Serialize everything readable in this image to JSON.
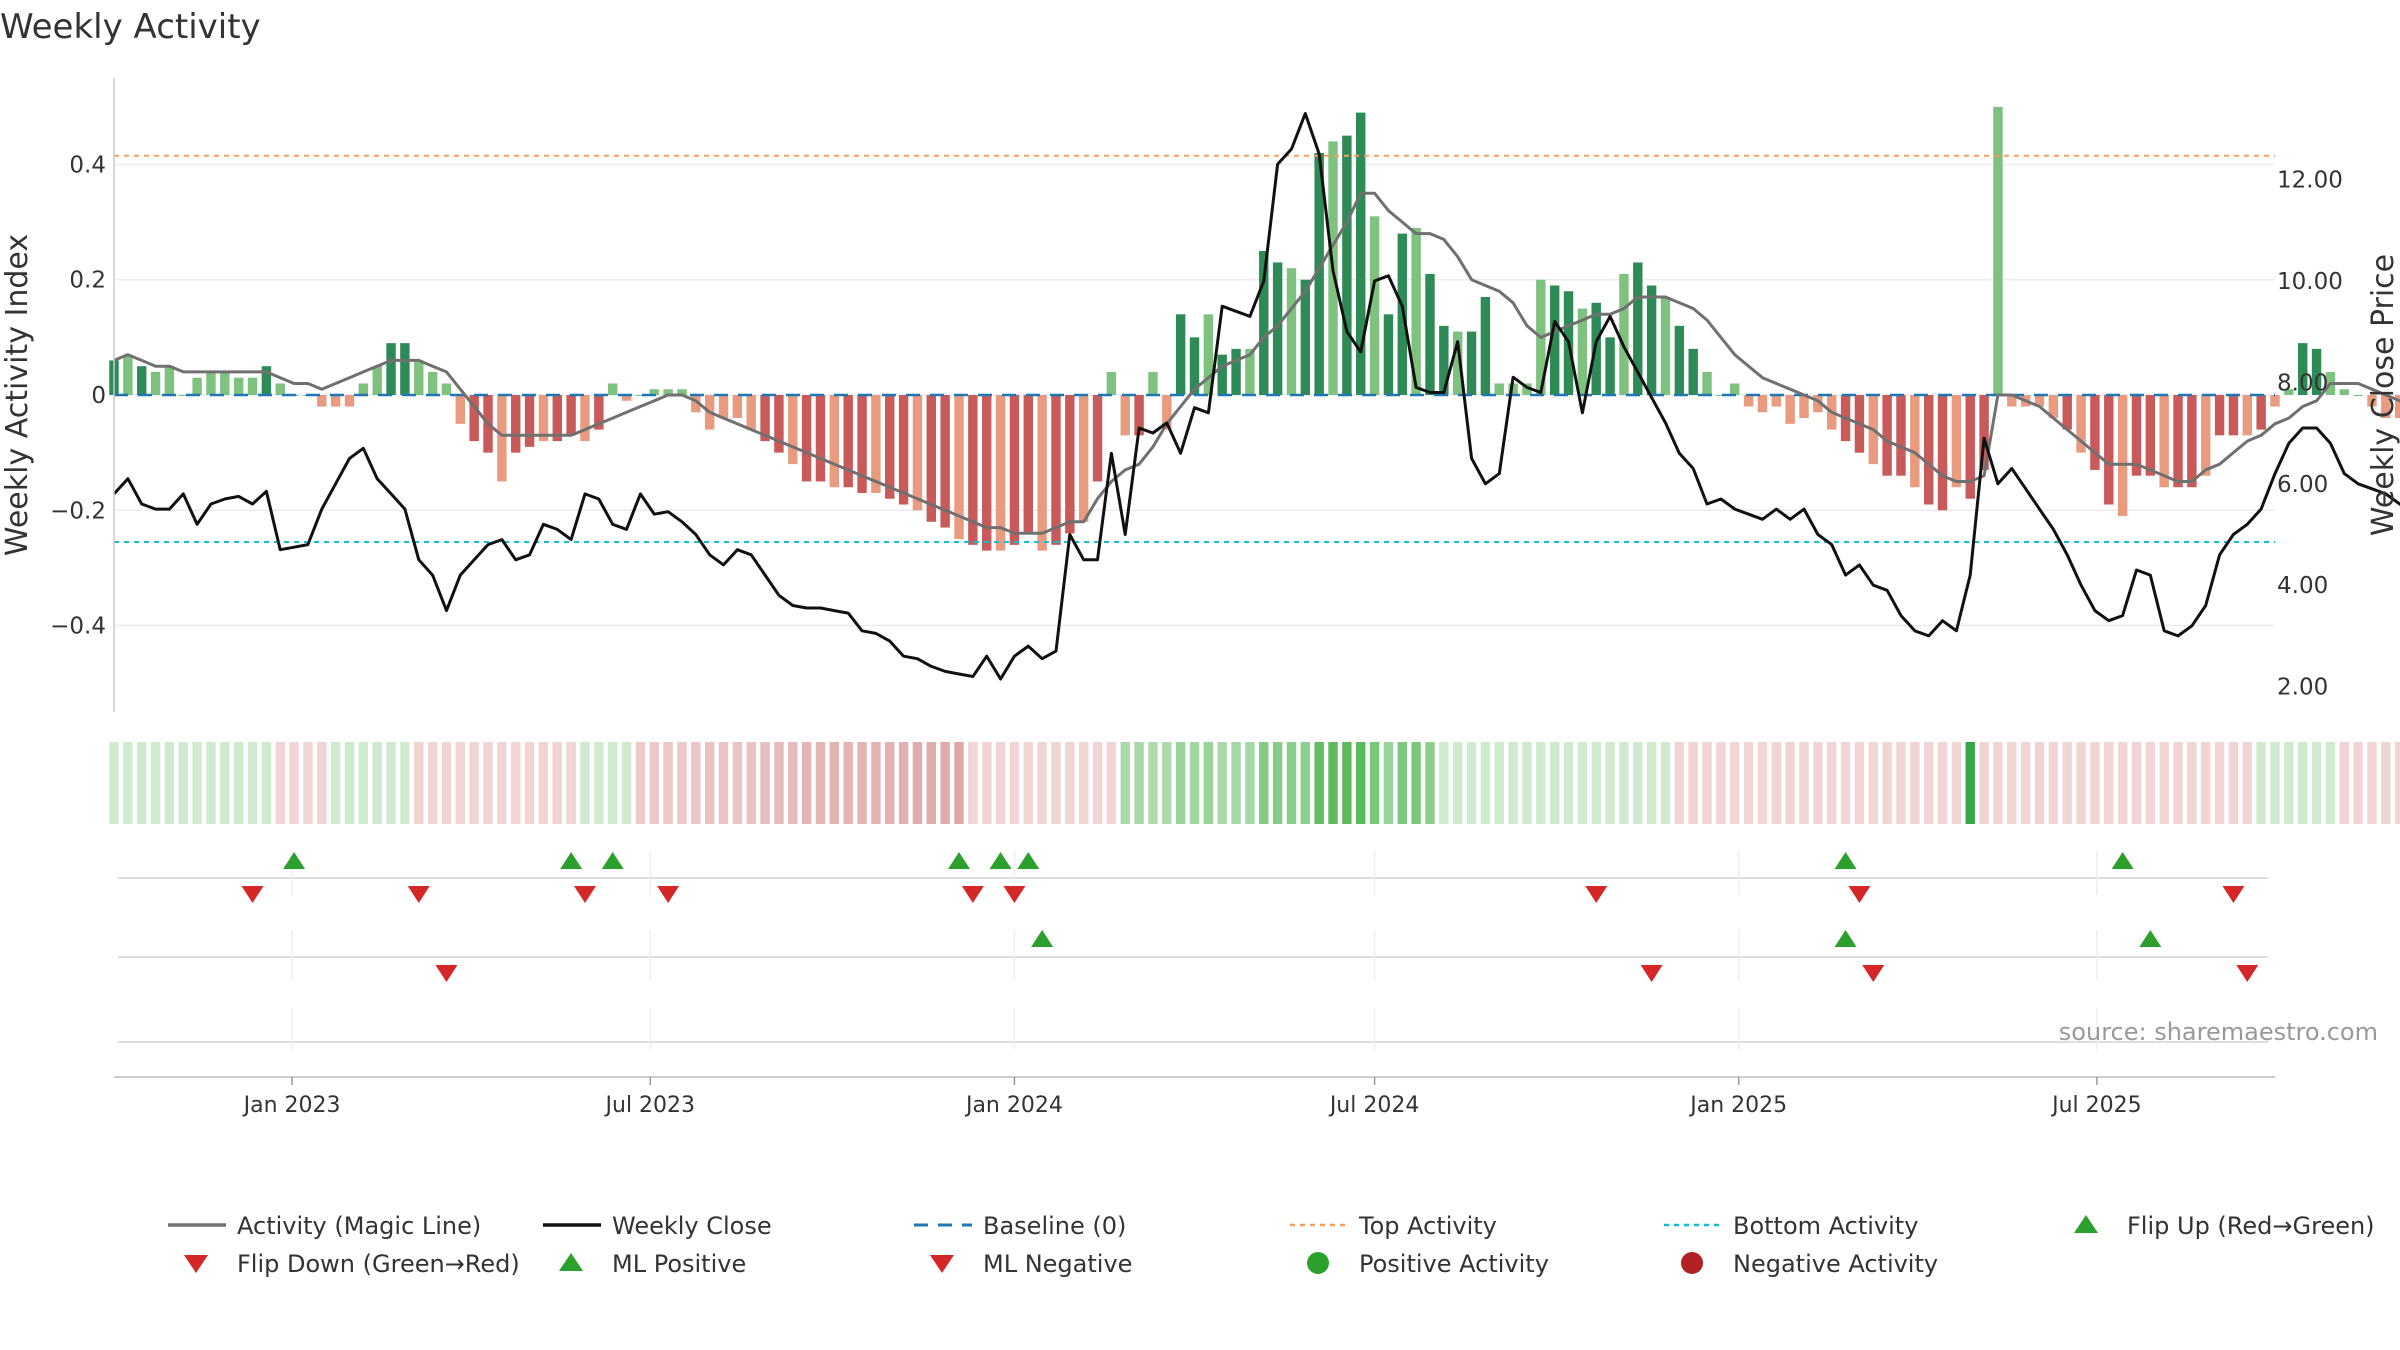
{
  "title": "Weekly Activity",
  "source": "source: sharemaestro.com",
  "colors": {
    "pos_dark": "#2e8b57",
    "pos_light": "#7fc27f",
    "neg_dark": "#c85a5a",
    "neg_light": "#e99b7f",
    "magic_line": "#707070",
    "close_line": "#111111",
    "baseline": "#1f77b4",
    "top": "#f0a060",
    "bottom": "#17becf",
    "up_marker": "#2ca02c",
    "down_marker": "#d62728",
    "pos_dot": "#2ca02c",
    "neg_dot": "#b22222"
  },
  "chart_data": {
    "type": "bar",
    "title": "Weekly Activity",
    "ylabel": "Weekly Activity Index",
    "y2label": "Weekly Close Price",
    "ylim": [
      -0.55,
      0.55
    ],
    "y2lim": [
      1.5,
      14.0
    ],
    "yticks": [
      {
        "v": 0.4,
        "label": "0.4"
      },
      {
        "v": 0.2,
        "label": "0.2"
      },
      {
        "v": 0,
        "label": "0"
      },
      {
        "v": -0.2,
        "label": "−0.2"
      },
      {
        "v": -0.4,
        "label": "−0.4"
      }
    ],
    "y2ticks": [
      "12.00",
      "10.00",
      "8.00",
      "6.00",
      "4.00",
      "2.00"
    ],
    "x_start": "2022-10-03",
    "x_end": "2025-09-29",
    "date_ticks": [
      {
        "date": "2023-01-01",
        "label": "Jan 2023"
      },
      {
        "date": "2023-07-01",
        "label": "Jul 2023"
      },
      {
        "date": "2024-01-01",
        "label": "Jan 2024"
      },
      {
        "date": "2024-07-01",
        "label": "Jul 2024"
      },
      {
        "date": "2025-01-01",
        "label": "Jan 2025"
      },
      {
        "date": "2025-07-01",
        "label": "Jul 2025"
      }
    ],
    "top_activity": 0.415,
    "bottom_activity": -0.255,
    "baseline": 0,
    "activity_weeks": [
      {
        "start": "2022-10-03",
        "values": [
          0.06,
          0.07,
          0.05,
          0.04,
          0.05,
          0.0,
          0.03,
          0.04,
          0.04,
          0.03,
          0.03,
          0.05,
          0.02,
          0.0,
          0.0,
          -0.02,
          -0.02,
          -0.02,
          0.02,
          0.05,
          0.09,
          0.09,
          0.06,
          0.04,
          0.02,
          -0.05,
          -0.08,
          -0.1,
          -0.15,
          -0.1,
          -0.09,
          -0.08,
          -0.08,
          -0.07,
          -0.08,
          -0.06,
          0.02,
          -0.01,
          0.0,
          0.01,
          0.01,
          0.01,
          -0.03,
          -0.06,
          -0.04,
          -0.04,
          -0.06,
          -0.08,
          -0.1,
          -0.12,
          -0.15,
          -0.15,
          -0.16,
          -0.16,
          -0.17,
          -0.17,
          -0.18,
          -0.19,
          -0.2,
          -0.22,
          -0.23,
          -0.25,
          -0.26,
          -0.27,
          -0.27,
          -0.26,
          -0.24,
          -0.27,
          -0.26,
          -0.24,
          -0.22,
          -0.15,
          0.04,
          -0.07,
          -0.07,
          0.04,
          -0.06,
          0.14,
          0.1,
          0.14,
          0.07,
          0.08,
          0.08,
          0.25,
          0.23,
          0.22,
          0.2,
          0.42,
          0.44,
          0.45,
          0.49,
          0.31,
          0.14,
          0.28,
          0.29,
          0.21,
          0.12,
          0.11,
          0.11,
          0.17,
          0.02,
          0.02,
          0.02,
          0.2,
          0.19,
          0.18,
          0.15,
          0.16,
          0.1,
          0.21,
          0.23,
          0.19,
          0.17,
          0.12,
          0.08,
          0.04,
          0.0,
          0.02,
          -0.02,
          -0.03,
          -0.02,
          -0.05,
          -0.04,
          -0.03,
          -0.06,
          -0.08,
          -0.1,
          -0.12,
          -0.14,
          -0.14,
          -0.16,
          -0.19,
          -0.2,
          -0.16,
          -0.18,
          -0.13,
          0.5,
          -0.02,
          -0.02,
          -0.02,
          -0.04,
          -0.06,
          -0.1,
          -0.13,
          -0.19,
          -0.21,
          -0.14,
          -0.14,
          -0.16,
          -0.16,
          -0.16,
          -0.14,
          -0.07,
          -0.07,
          -0.07,
          -0.06,
          -0.02,
          0.01,
          0.09,
          0.08,
          0.04,
          0.01,
          0.0,
          -0.02,
          -0.04,
          -0.04,
          -0.04,
          -0.05
        ]
      }
    ],
    "magic_line": [
      0.06,
      0.07,
      0.06,
      0.05,
      0.05,
      0.04,
      0.04,
      0.04,
      0.04,
      0.04,
      0.04,
      0.04,
      0.03,
      0.02,
      0.02,
      0.01,
      0.02,
      0.03,
      0.04,
      0.05,
      0.06,
      0.06,
      0.06,
      0.05,
      0.04,
      0.01,
      -0.02,
      -0.05,
      -0.07,
      -0.07,
      -0.07,
      -0.07,
      -0.07,
      -0.07,
      -0.06,
      -0.05,
      -0.04,
      -0.03,
      -0.02,
      -0.01,
      0.0,
      0.0,
      -0.01,
      -0.03,
      -0.04,
      -0.05,
      -0.06,
      -0.07,
      -0.08,
      -0.09,
      -0.1,
      -0.11,
      -0.12,
      -0.13,
      -0.14,
      -0.15,
      -0.16,
      -0.17,
      -0.18,
      -0.19,
      -0.2,
      -0.21,
      -0.22,
      -0.23,
      -0.23,
      -0.24,
      -0.24,
      -0.24,
      -0.23,
      -0.22,
      -0.22,
      -0.18,
      -0.15,
      -0.13,
      -0.12,
      -0.09,
      -0.05,
      -0.02,
      0.01,
      0.03,
      0.05,
      0.06,
      0.07,
      0.1,
      0.12,
      0.15,
      0.18,
      0.22,
      0.26,
      0.3,
      0.35,
      0.35,
      0.32,
      0.3,
      0.28,
      0.28,
      0.27,
      0.24,
      0.2,
      0.19,
      0.18,
      0.16,
      0.12,
      0.1,
      0.11,
      0.12,
      0.13,
      0.14,
      0.14,
      0.15,
      0.17,
      0.17,
      0.17,
      0.16,
      0.15,
      0.13,
      0.1,
      0.07,
      0.05,
      0.03,
      0.02,
      0.01,
      0.0,
      -0.01,
      -0.03,
      -0.04,
      -0.05,
      -0.06,
      -0.08,
      -0.09,
      -0.1,
      -0.12,
      -0.14,
      -0.15,
      -0.15,
      -0.14,
      0.0,
      0.0,
      -0.01,
      -0.02,
      -0.04,
      -0.06,
      -0.08,
      -0.1,
      -0.12,
      -0.12,
      -0.12,
      -0.13,
      -0.14,
      -0.15,
      -0.15,
      -0.13,
      -0.12,
      -0.1,
      -0.08,
      -0.07,
      -0.05,
      -0.04,
      -0.02,
      -0.01,
      0.02,
      0.02,
      0.02,
      0.01,
      0.0,
      -0.01,
      -0.02,
      -0.03,
      -0.04,
      -0.05
    ],
    "weekly_close": [
      5.8,
      6.1,
      5.6,
      5.5,
      5.5,
      5.8,
      5.2,
      5.6,
      5.7,
      5.75,
      5.6,
      5.85,
      4.7,
      4.75,
      4.8,
      5.5,
      6.0,
      6.5,
      6.7,
      6.1,
      5.8,
      5.5,
      4.5,
      4.2,
      3.5,
      4.2,
      4.5,
      4.8,
      4.9,
      4.5,
      4.6,
      5.2,
      5.1,
      4.9,
      5.8,
      5.7,
      5.2,
      5.1,
      5.8,
      5.4,
      5.45,
      5.25,
      5.0,
      4.6,
      4.4,
      4.7,
      4.6,
      4.2,
      3.8,
      3.6,
      3.55,
      3.55,
      3.5,
      3.45,
      3.1,
      3.05,
      2.9,
      2.6,
      2.55,
      2.4,
      2.3,
      2.25,
      2.2,
      2.6,
      2.15,
      2.6,
      2.8,
      2.55,
      2.7,
      5.0,
      4.5,
      4.5,
      6.6,
      5.0,
      7.1,
      7.0,
      7.2,
      6.6,
      7.5,
      7.4,
      9.5,
      9.4,
      9.3,
      10.0,
      12.3,
      12.6,
      13.3,
      12.5,
      10.2,
      9.0,
      8.6,
      10.0,
      10.1,
      9.5,
      7.9,
      7.8,
      7.8,
      8.8,
      6.5,
      6.0,
      6.2,
      8.1,
      7.9,
      7.8,
      9.2,
      8.8,
      7.4,
      8.8,
      9.3,
      8.7,
      8.2,
      7.7,
      7.2,
      6.6,
      6.3,
      5.6,
      5.7,
      5.5,
      5.4,
      5.3,
      5.5,
      5.3,
      5.5,
      5.0,
      4.8,
      4.2,
      4.4,
      4.0,
      3.9,
      3.4,
      3.1,
      3.0,
      3.3,
      3.1,
      4.2,
      6.9,
      6.0,
      6.3,
      5.9,
      5.5,
      5.1,
      4.6,
      4.0,
      3.5,
      3.3,
      3.4,
      4.3,
      4.2,
      3.1,
      3.0,
      3.2,
      3.6,
      4.6,
      5.0,
      5.2,
      5.5,
      6.2,
      6.8,
      7.1,
      7.1,
      6.8,
      6.2,
      6.0,
      5.9,
      5.8,
      5.6,
      5.4,
      5.1
    ],
    "heat_strip": [
      {
        "week_range": [
          0,
          11
        ],
        "tone": "light-green"
      },
      {
        "week_range": [
          12,
          15
        ],
        "tone": "light-red"
      },
      {
        "week_range": [
          16,
          21
        ],
        "tone": "light-green"
      },
      {
        "week_range": [
          22,
          33
        ],
        "tone": "light-red"
      },
      {
        "week_range": [
          34,
          37
        ],
        "tone": "light-green"
      },
      {
        "week_range": [
          38,
          61
        ],
        "tone": "red"
      },
      {
        "week_range": [
          62,
          72
        ],
        "tone": "light-red"
      },
      {
        "week_range": [
          73,
          95
        ],
        "tone": "green"
      },
      {
        "week_range": [
          96,
          112
        ],
        "tone": "light-green"
      },
      {
        "week_range": [
          113,
          133
        ],
        "tone": "light-red"
      },
      {
        "week_range": [
          134,
          134
        ],
        "tone": "dark-green"
      },
      {
        "week_range": [
          135,
          154
        ],
        "tone": "light-red"
      },
      {
        "week_range": [
          155,
          160
        ],
        "tone": "light-green"
      },
      {
        "week_range": [
          161,
          164
        ],
        "tone": "light-red"
      }
    ],
    "markers": {
      "flip_up": [
        "2023-01-02",
        "2023-05-22",
        "2023-06-12",
        "2023-12-04",
        "2023-12-25",
        "2024-01-08",
        "2025-02-24",
        "2025-07-14"
      ],
      "flip_down": [
        "2022-12-12",
        "2023-03-06",
        "2023-05-29",
        "2023-07-10",
        "2023-12-11",
        "2024-01-01",
        "2024-10-21",
        "2025-03-03",
        "2025-09-08"
      ],
      "ml_positive": [
        "2024-01-15",
        "2025-02-24",
        "2025-07-28"
      ],
      "ml_negative": [
        "2023-03-20",
        "2024-11-18",
        "2025-03-10",
        "2025-09-15"
      ]
    }
  },
  "legend": [
    {
      "label": "Activity (Magic Line)",
      "kind": "line",
      "color": "#707070"
    },
    {
      "label": "Weekly Close",
      "kind": "line",
      "color": "#111111"
    },
    {
      "label": "Baseline (0)",
      "kind": "dashed",
      "color": "#1f77b4"
    },
    {
      "label": "Top Activity",
      "kind": "dotted",
      "color": "#f0a060"
    },
    {
      "label": "Bottom Activity",
      "kind": "dotted",
      "color": "#17becf"
    },
    {
      "label": "Flip Up (Red→Green)",
      "kind": "tri-up",
      "color": "#2ca02c"
    },
    {
      "label": "Flip Down (Green→Red)",
      "kind": "tri-down",
      "color": "#d62728"
    },
    {
      "label": "ML Positive",
      "kind": "tri-up",
      "color": "#2ca02c"
    },
    {
      "label": "ML Negative",
      "kind": "tri-down",
      "color": "#d62728"
    },
    {
      "label": "Positive Activity",
      "kind": "dot",
      "color": "#2ca02c"
    },
    {
      "label": "Negative Activity",
      "kind": "dot",
      "color": "#b22222"
    }
  ]
}
